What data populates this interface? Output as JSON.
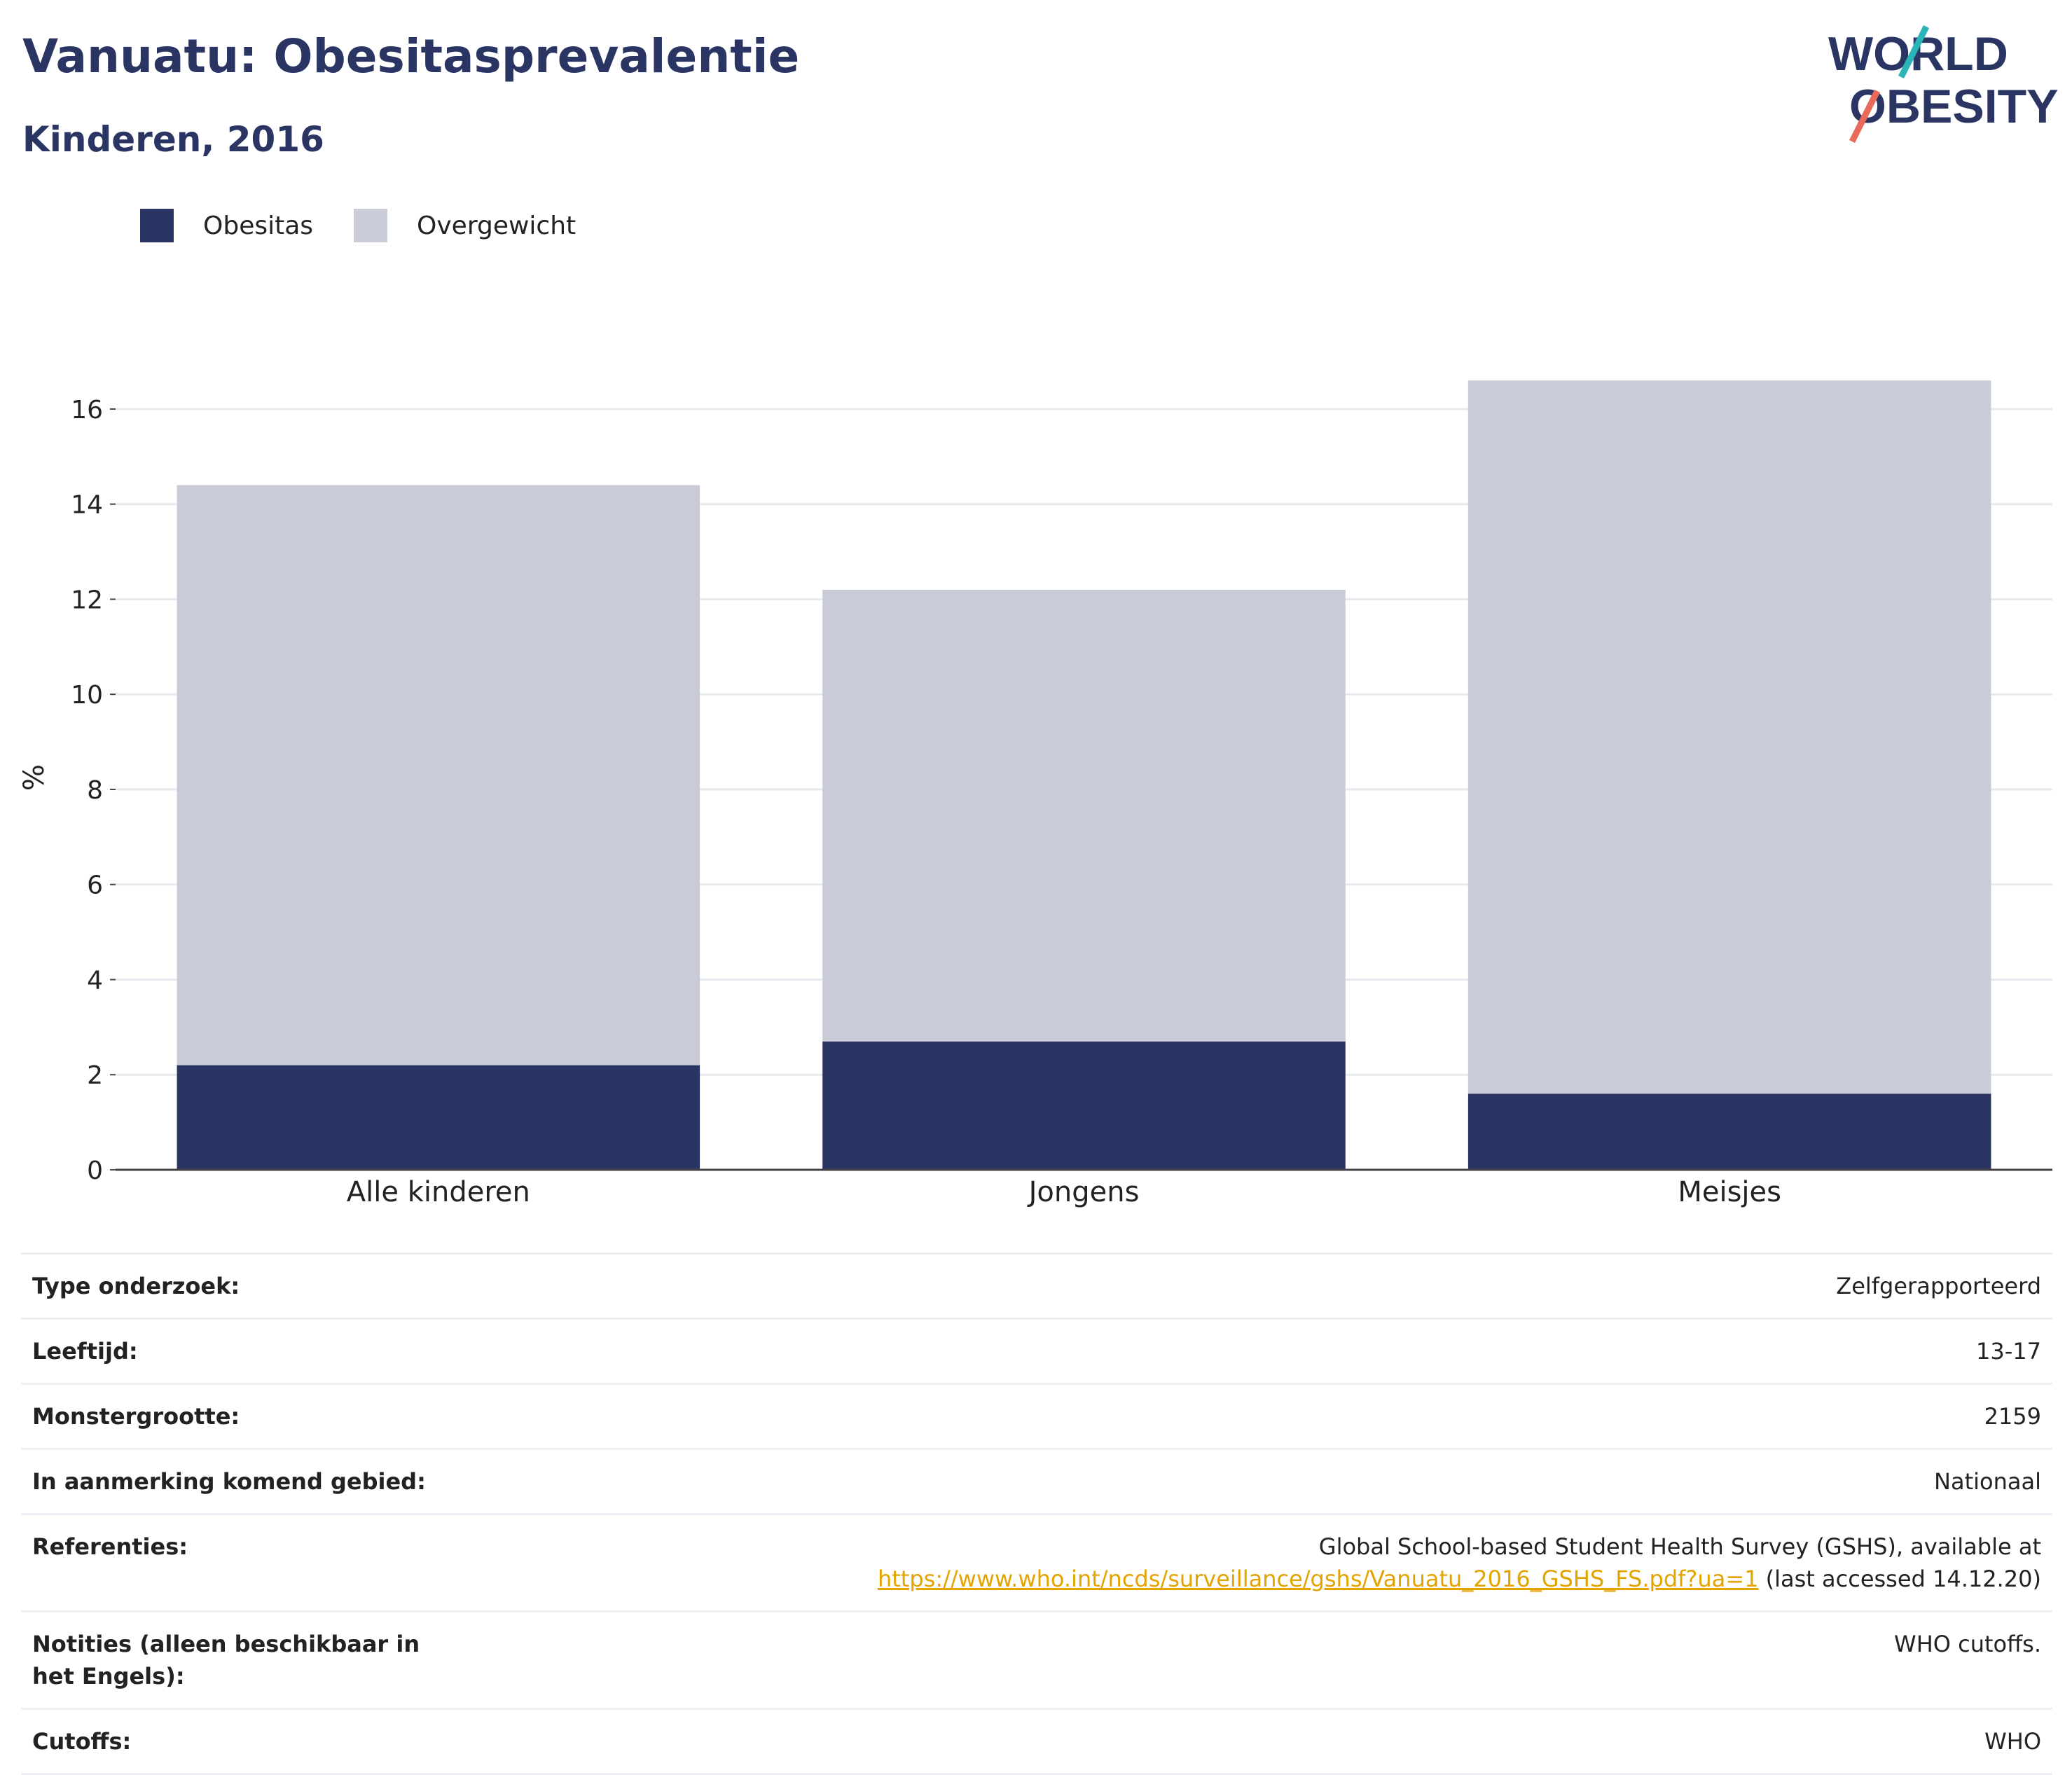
{
  "header": {
    "title": "Vanuatu: Obesitasprevalentie",
    "subtitle": "Kinderen, 2016"
  },
  "logo": {
    "line1": "WORLD",
    "line2": "OBESITY"
  },
  "legend": [
    {
      "label": "Obesitas",
      "color": "#2a3564"
    },
    {
      "label": "Overgewicht",
      "color": "#c9cbd7"
    }
  ],
  "chart_data": {
    "type": "bar",
    "stacked": true,
    "categories": [
      "Alle kinderen",
      "Jongens",
      "Meisjes"
    ],
    "series": [
      {
        "name": "Obesitas",
        "values": [
          2.2,
          2.7,
          1.6
        ],
        "color": "#2a3564"
      },
      {
        "name": "Overgewicht",
        "values": [
          12.2,
          9.5,
          15.0
        ],
        "color": "#c9cbd7"
      }
    ],
    "ylabel": "%",
    "ylim": [
      0,
      16.5
    ],
    "yticks": [
      0,
      2,
      4,
      6,
      8,
      10,
      12,
      14,
      16
    ],
    "grid": true,
    "legend_position": "top-left"
  },
  "info": {
    "rows": [
      {
        "key": "Type onderzoek:",
        "value": "Zelfgerapporteerd"
      },
      {
        "key": "Leeftijd:",
        "value": "13-17"
      },
      {
        "key": "Monstergrootte:",
        "value": "2159"
      },
      {
        "key": "In aanmerking komend gebied:",
        "value": "Nationaal"
      }
    ],
    "references": {
      "key": "Referenties:",
      "line1": "Global School-based Student Health Survey (GSHS), available at",
      "link": "https://www.who.int/ncds/surveillance/gshs/Vanuatu_2016_GSHS_FS.pdf?ua=1",
      "suffix": " (last accessed 14.12.20)"
    },
    "notes": {
      "key": "Notities (alleen beschikbaar in het Engels):",
      "value": "WHO cutoffs."
    },
    "cutoffs": {
      "key": "Cutoffs:",
      "value": "WHO"
    }
  }
}
